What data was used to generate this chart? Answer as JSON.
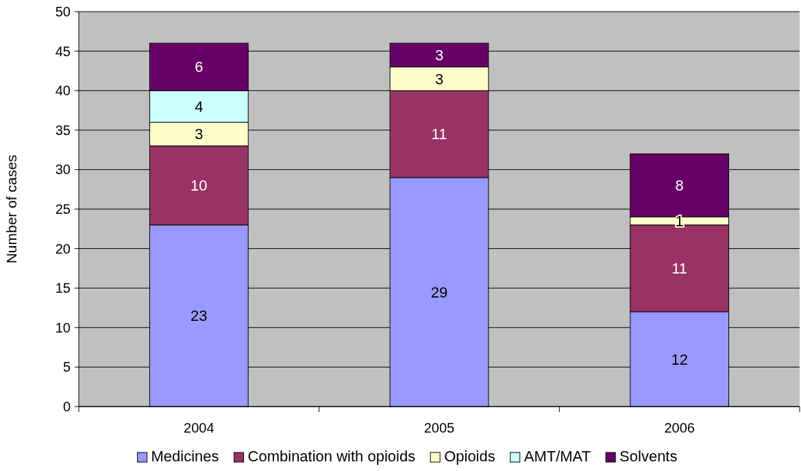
{
  "chart_data": {
    "type": "bar",
    "stacked": true,
    "ylabel": "Number of cases",
    "categories": [
      "2004",
      "2005",
      "2006"
    ],
    "series": [
      {
        "name": "Medicines",
        "color": "#9999ff",
        "values": [
          23,
          29,
          12
        ]
      },
      {
        "name": "Combination with opioids",
        "color": "#993366",
        "values": [
          10,
          11,
          11
        ]
      },
      {
        "name": "Opioids",
        "color": "#ffffcc",
        "values": [
          3,
          3,
          1
        ]
      },
      {
        "name": "AMT/MAT",
        "color": "#ccffff",
        "values": [
          4,
          null,
          null
        ]
      },
      {
        "name": "Solvents",
        "color": "#660066",
        "values": [
          6,
          3,
          8
        ]
      }
    ],
    "ylim": [
      0,
      50
    ],
    "yticks": [
      0,
      5,
      10,
      15,
      20,
      25,
      30,
      35,
      40,
      45,
      50
    ],
    "grid": "y",
    "legend": "bottom",
    "data_labels": true
  }
}
